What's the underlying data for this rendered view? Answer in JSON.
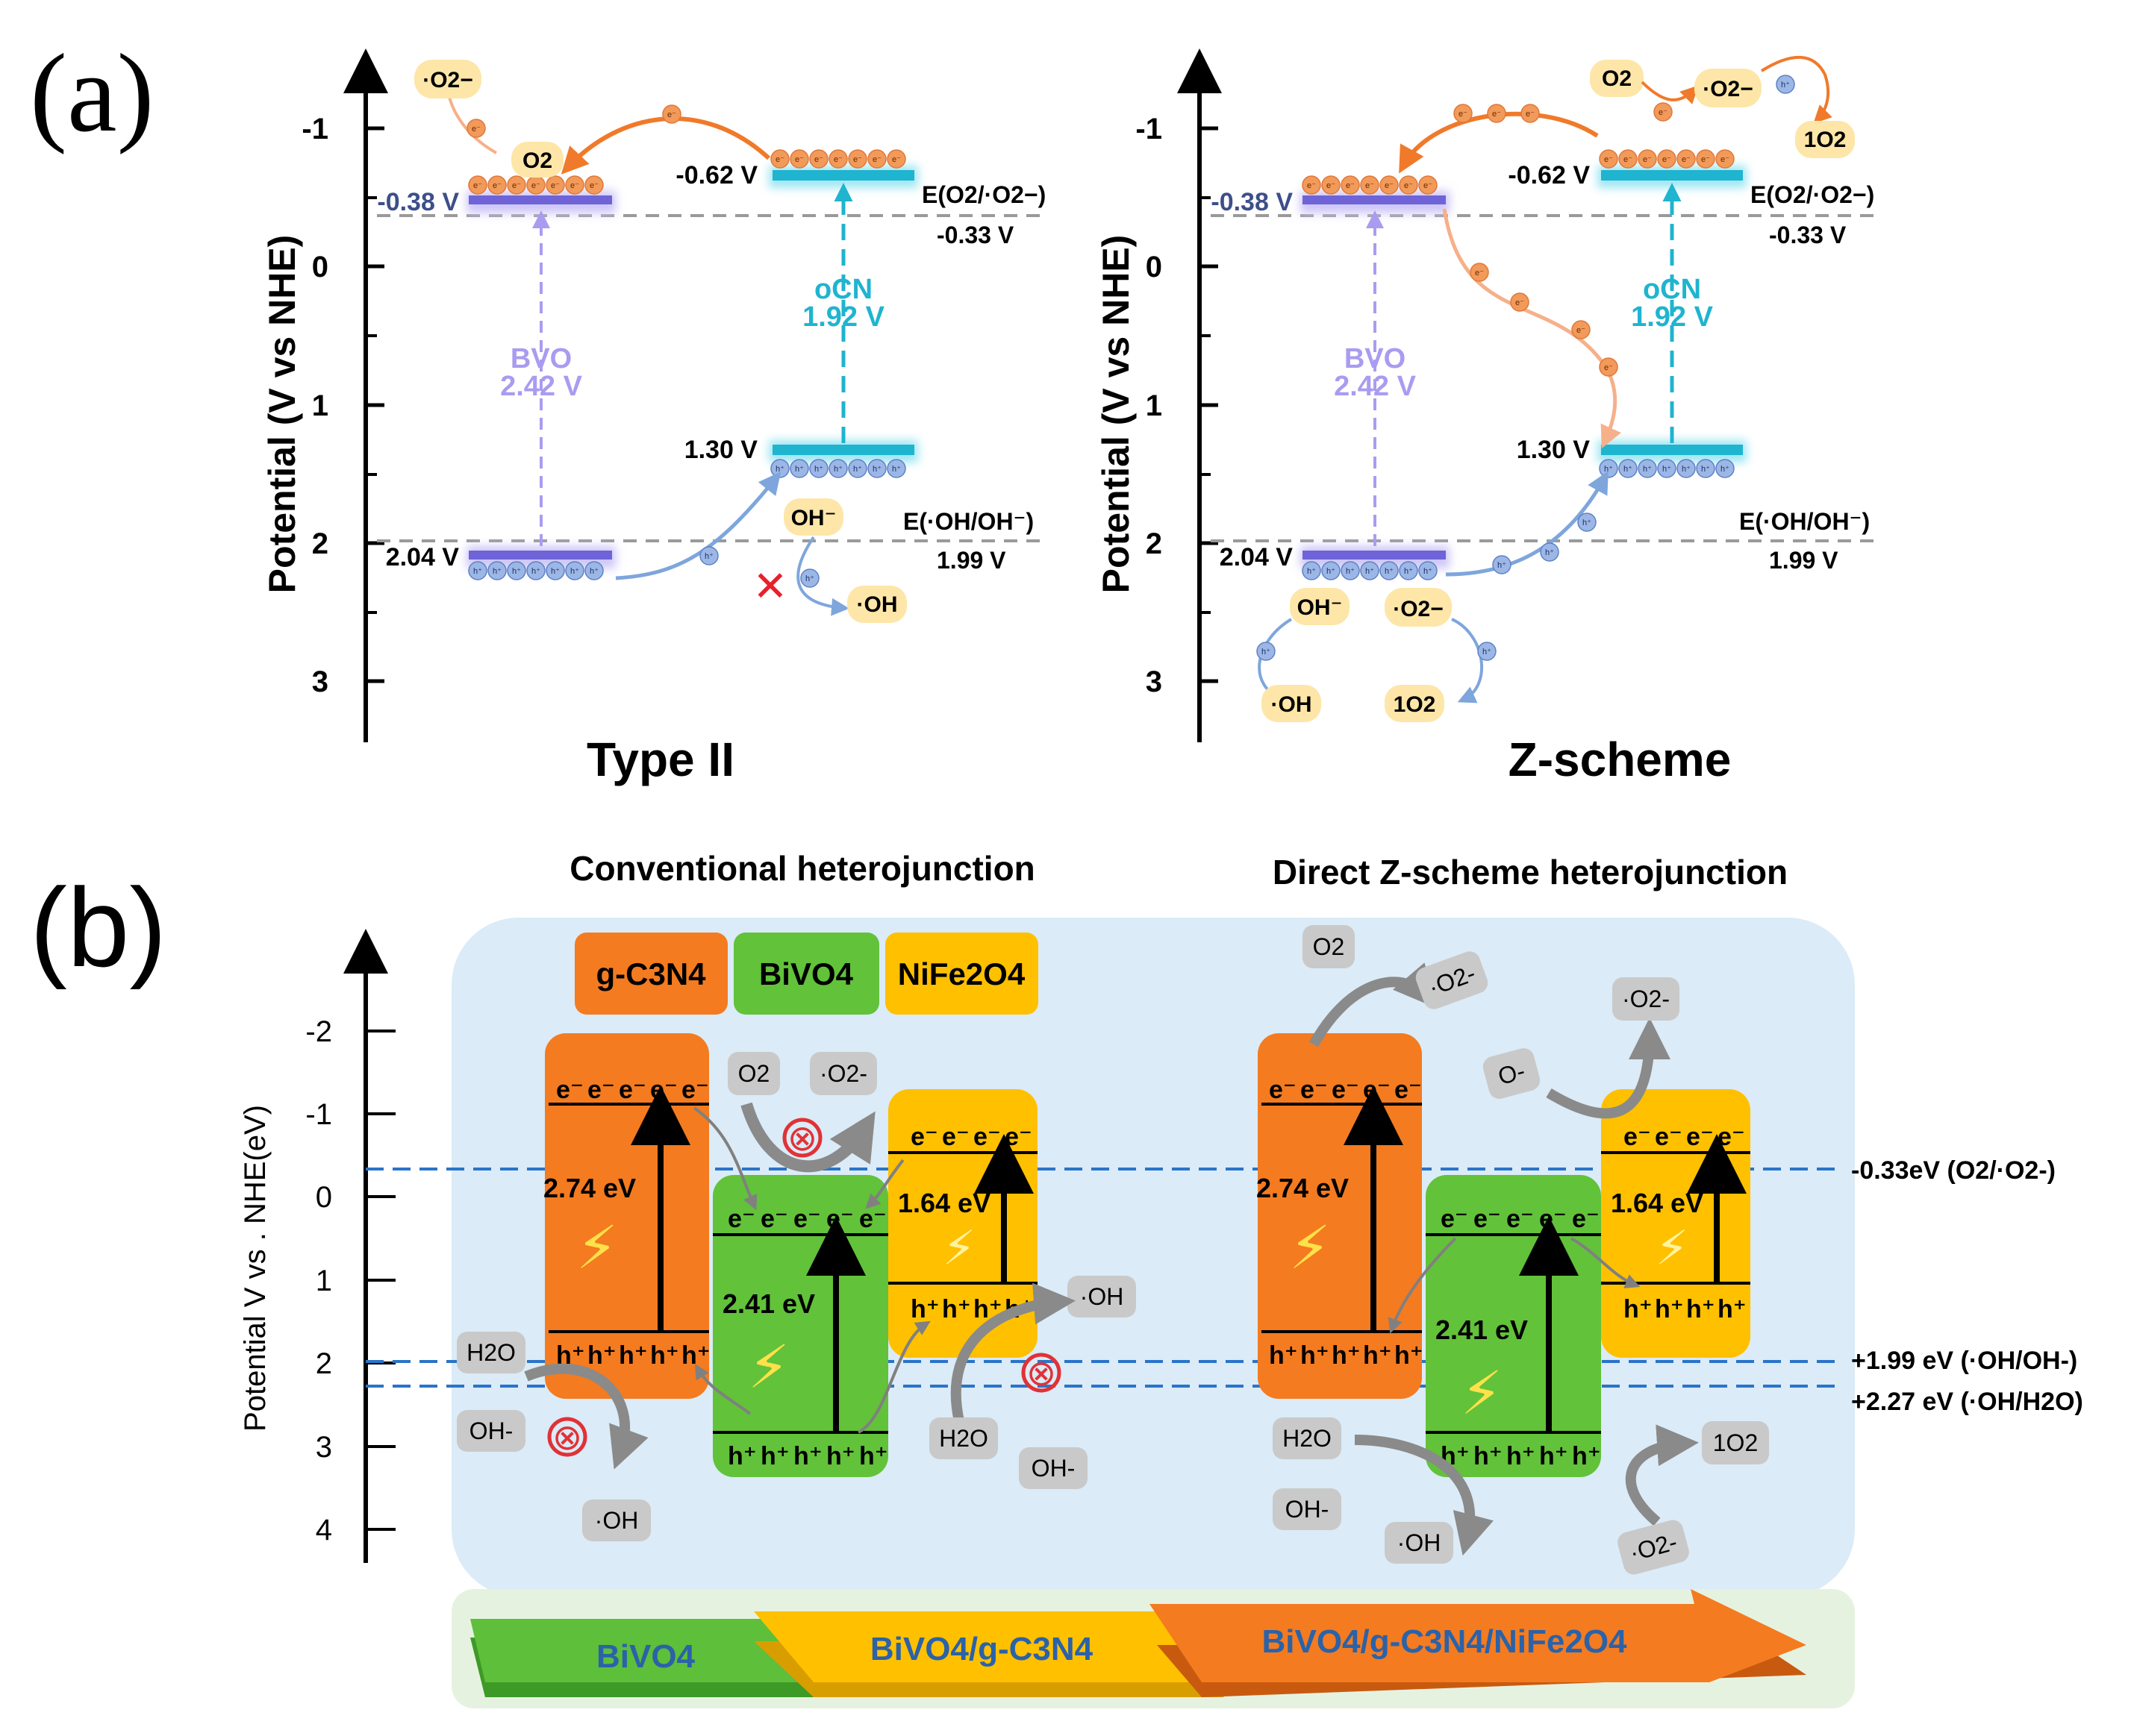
{
  "panel_labels": {
    "a": "(a)",
    "b": "(b)"
  },
  "colors": {
    "bvo": "#a99cf0",
    "bvo_dark": "#6f63d8",
    "ocn": "#1fb4cf",
    "ocn_glow": "#9fe6f3",
    "electron": "#f29a5a",
    "electron_dark": "#e0783a",
    "hole": "#9cb7e6",
    "hole_dark": "#5e82c7",
    "arrow_orange": "#f07a2a",
    "arrow_blue": "#7ea6dc",
    "gray_dash": "#9a9a9a",
    "red": "#e8202a",
    "panel_b_bg": "#dbebf7",
    "gcn": "#f47b20",
    "bivo4": "#62c23a",
    "nife2o4": "#ffc000",
    "pill": "#c9c9c9",
    "blue_dash": "#2a74c8",
    "inhibit": "#e03236",
    "banner_green": "#5dbf3a",
    "banner_yellow": "#ffc000",
    "banner_orange": "#f47b20",
    "banner_text": "#2b62a8"
  },
  "panel_a": {
    "axis": {
      "label": "Potential (V vs NHE)",
      "ticks": [
        "-1",
        "0",
        "1",
        "2",
        "3"
      ]
    },
    "common": {
      "bvo_cb": "-0.38 V",
      "bvo_vb": "2.04 V",
      "ocn_cb": "-0.62 V",
      "ocn_vb": "1.30 V",
      "bvo_name": "BVO",
      "bvo_gap": "2.42 V",
      "ocn_name": "oCN",
      "ocn_gap": "1.92 V",
      "o2_couple": "E(O2/·O2−)",
      "o2_couple_value": "-0.33 V",
      "oh_couple": "E(·OH/OH⁻)",
      "oh_couple_value": "1.99 V",
      "electron": "e⁻",
      "hole": "h⁺"
    },
    "type2": {
      "title": "Type II",
      "species": {
        "superoxide": "·O2−",
        "o2": "O2",
        "hydroxide": "OH⁻",
        "hydroxyl": "·OH"
      },
      "blocked_mark": "✕"
    },
    "zscheme": {
      "title": "Z-scheme",
      "species": {
        "o2": "O2",
        "superoxide": "·O2−",
        "singlet": "1O2",
        "hydroxide": "OH⁻",
        "hydroxyl": "·OH",
        "superoxide_lower": "·O2−",
        "singlet_lower": "1O2"
      }
    }
  },
  "panel_b": {
    "titles": {
      "left": "Conventional heterojunction",
      "right": "Direct Z-scheme heterojunction"
    },
    "axis": {
      "label": "Potential V vs . NHE(eV)",
      "ticks": [
        "-2",
        "-1",
        "0",
        "1",
        "2",
        "3",
        "4"
      ]
    },
    "legend": {
      "gcn": "g-C3N4",
      "bivo4": "BiVO4",
      "nife2o4": "NiFe2O4"
    },
    "gaps": {
      "gcn": "2.74 eV",
      "bivo4": "2.41 eV",
      "nife2o4": "1.64 eV"
    },
    "electron": "e⁻",
    "hole": "h⁺",
    "ref_lines": {
      "o2": "-0.33eV (O2/·O2-)",
      "oh": "+1.99 eV (·OH/OH-)",
      "h2o": "+2.27 eV (·OH/H2O)"
    },
    "species": {
      "o2": "O2",
      "superoxide": "·O2-",
      "water": "H2O",
      "hydroxide": "OH-",
      "hydroxyl": "·OH",
      "singlet": "1O2",
      "o_minus": "O-"
    },
    "inhibit_mark": "⊗",
    "banner": {
      "first": "BiVO4",
      "second": "BiVO4/g-C3N4",
      "third": "BiVO4/g-C3N4/NiFe2O4"
    }
  }
}
